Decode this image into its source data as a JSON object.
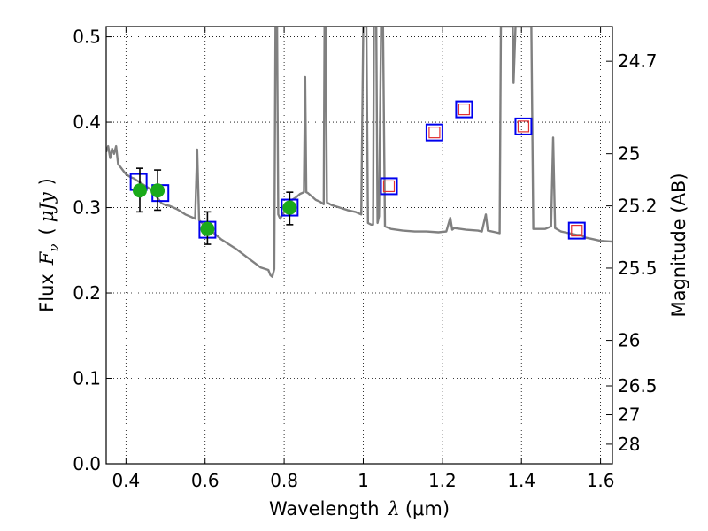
{
  "chart_data": {
    "type": "line",
    "title": "",
    "xlabel": "Wavelength  λ (μm)",
    "xlabel_parts": {
      "text": "Wavelength",
      "symbol": "λ",
      "unit": "(μm)"
    },
    "ylabel": "Flux  Fν ( μJy )",
    "ylabel_parts": {
      "text": "Flux",
      "symbol": "F",
      "sub": "ν",
      "open": "(",
      "unit": "μJy",
      "close": ")"
    },
    "y2label": "Magnitude (AB)",
    "xlim": [
      0.35,
      1.63
    ],
    "ylim": [
      0.0,
      0.512
    ],
    "grid": true,
    "grid_style": "dotted",
    "x_ticks": [
      "0.4",
      "0.6",
      "0.8",
      "1",
      "1.2",
      "1.4",
      "1.6"
    ],
    "y_ticks": [
      "0.0",
      "0.1",
      "0.2",
      "0.3",
      "0.4",
      "0.5"
    ],
    "y2_ticks": [
      {
        "label": "24.7",
        "flux": 0.4714
      },
      {
        "label": "25",
        "flux": 0.3631
      },
      {
        "label": "25.2",
        "flux": 0.302
      },
      {
        "label": "25.5",
        "flux": 0.2291
      },
      {
        "label": "26",
        "flux": 0.1445
      },
      {
        "label": "26.5",
        "flux": 0.0912
      },
      {
        "label": "27",
        "flux": 0.0575
      },
      {
        "label": "28",
        "flux": 0.0229
      }
    ],
    "colors": {
      "model": "#808080",
      "observed": "#1aaa1a",
      "box": "#0000ee",
      "inner": "#e03030",
      "error": "#000000"
    },
    "series": [
      {
        "kind": "model-spectrum",
        "points": [
          [
            0.35,
            0.365
          ],
          [
            0.355,
            0.372
          ],
          [
            0.36,
            0.358
          ],
          [
            0.365,
            0.369
          ],
          [
            0.37,
            0.363
          ],
          [
            0.375,
            0.372
          ],
          [
            0.38,
            0.351
          ],
          [
            0.39,
            0.345
          ],
          [
            0.4,
            0.339
          ],
          [
            0.41,
            0.336
          ],
          [
            0.42,
            0.334
          ],
          [
            0.43,
            0.331
          ],
          [
            0.44,
            0.328
          ],
          [
            0.45,
            0.325
          ],
          [
            0.46,
            0.322
          ],
          [
            0.47,
            0.318
          ],
          [
            0.48,
            0.311
          ],
          [
            0.49,
            0.305
          ],
          [
            0.5,
            0.303
          ],
          [
            0.51,
            0.302
          ],
          [
            0.52,
            0.3
          ],
          [
            0.53,
            0.298
          ],
          [
            0.54,
            0.295
          ],
          [
            0.55,
            0.292
          ],
          [
            0.56,
            0.29
          ],
          [
            0.57,
            0.288
          ],
          [
            0.575,
            0.287
          ],
          [
            0.58,
            0.368
          ],
          [
            0.585,
            0.285
          ],
          [
            0.59,
            0.283
          ],
          [
            0.6,
            0.277
          ],
          [
            0.62,
            0.271
          ],
          [
            0.64,
            0.263
          ],
          [
            0.66,
            0.257
          ],
          [
            0.68,
            0.251
          ],
          [
            0.7,
            0.244
          ],
          [
            0.72,
            0.237
          ],
          [
            0.74,
            0.23
          ],
          [
            0.76,
            0.227
          ],
          [
            0.765,
            0.221
          ],
          [
            0.77,
            0.219
          ],
          [
            0.775,
            0.228
          ],
          [
            0.778,
            0.512
          ],
          [
            0.782,
            0.512
          ],
          [
            0.785,
            0.292
          ],
          [
            0.79,
            0.287
          ],
          [
            0.8,
            0.295
          ],
          [
            0.81,
            0.305
          ],
          [
            0.82,
            0.309
          ],
          [
            0.83,
            0.312
          ],
          [
            0.84,
            0.316
          ],
          [
            0.85,
            0.318
          ],
          [
            0.853,
            0.453
          ],
          [
            0.856,
            0.318
          ],
          [
            0.86,
            0.317
          ],
          [
            0.87,
            0.313
          ],
          [
            0.88,
            0.309
          ],
          [
            0.89,
            0.307
          ],
          [
            0.9,
            0.304
          ],
          [
            0.902,
            0.512
          ],
          [
            0.905,
            0.512
          ],
          [
            0.908,
            0.306
          ],
          [
            0.92,
            0.303
          ],
          [
            0.94,
            0.3
          ],
          [
            0.96,
            0.297
          ],
          [
            0.98,
            0.295
          ],
          [
            0.995,
            0.292
          ],
          [
            1.0,
            0.512
          ],
          [
            1.008,
            0.512
          ],
          [
            1.012,
            0.282
          ],
          [
            1.02,
            0.28
          ],
          [
            1.025,
            0.28
          ],
          [
            1.027,
            0.512
          ],
          [
            1.033,
            0.512
          ],
          [
            1.036,
            0.282
          ],
          [
            1.04,
            0.29
          ],
          [
            1.045,
            0.512
          ],
          [
            1.05,
            0.512
          ],
          [
            1.055,
            0.278
          ],
          [
            1.07,
            0.275
          ],
          [
            1.1,
            0.273
          ],
          [
            1.13,
            0.272
          ],
          [
            1.16,
            0.272
          ],
          [
            1.19,
            0.271
          ],
          [
            1.21,
            0.272
          ],
          [
            1.22,
            0.288
          ],
          [
            1.225,
            0.274
          ],
          [
            1.23,
            0.276
          ],
          [
            1.26,
            0.274
          ],
          [
            1.29,
            0.273
          ],
          [
            1.3,
            0.272
          ],
          [
            1.31,
            0.292
          ],
          [
            1.315,
            0.273
          ],
          [
            1.335,
            0.271
          ],
          [
            1.345,
            0.27
          ],
          [
            1.348,
            0.512
          ],
          [
            1.355,
            0.512
          ],
          [
            1.36,
            0.512
          ],
          [
            1.372,
            0.512
          ],
          [
            1.378,
            0.512
          ],
          [
            1.38,
            0.446
          ],
          [
            1.385,
            0.512
          ],
          [
            1.395,
            0.512
          ],
          [
            1.41,
            0.512
          ],
          [
            1.42,
            0.512
          ],
          [
            1.425,
            0.512
          ],
          [
            1.43,
            0.275
          ],
          [
            1.44,
            0.275
          ],
          [
            1.46,
            0.275
          ],
          [
            1.475,
            0.278
          ],
          [
            1.48,
            0.382
          ],
          [
            1.485,
            0.276
          ],
          [
            1.5,
            0.272
          ],
          [
            1.52,
            0.27
          ],
          [
            1.54,
            0.268
          ],
          [
            1.55,
            0.268
          ],
          [
            1.56,
            0.265
          ],
          [
            1.58,
            0.263
          ],
          [
            1.6,
            0.261
          ],
          [
            1.63,
            0.26
          ]
        ]
      },
      {
        "kind": "observed",
        "points": [
          {
            "x": 0.435,
            "y": 0.32,
            "lo": 0.295,
            "hi": 0.346
          },
          {
            "x": 0.48,
            "y": 0.32,
            "lo": 0.297,
            "hi": 0.344
          },
          {
            "x": 0.606,
            "y": 0.275,
            "lo": 0.257,
            "hi": 0.295
          },
          {
            "x": 0.814,
            "y": 0.3,
            "lo": 0.28,
            "hi": 0.318
          }
        ]
      },
      {
        "kind": "model-photometry",
        "points": [
          {
            "x": 0.432,
            "y": 0.33,
            "inner": false
          },
          {
            "x": 0.487,
            "y": 0.317,
            "inner": false
          },
          {
            "x": 0.606,
            "y": 0.274,
            "inner": false
          },
          {
            "x": 0.814,
            "y": 0.3,
            "inner": false
          },
          {
            "x": 1.065,
            "y": 0.325,
            "inner": true
          },
          {
            "x": 1.18,
            "y": 0.388,
            "inner": true
          },
          {
            "x": 1.255,
            "y": 0.415,
            "inner": true
          },
          {
            "x": 1.405,
            "y": 0.395,
            "inner": true
          },
          {
            "x": 1.54,
            "y": 0.273,
            "inner": true
          }
        ]
      }
    ]
  }
}
